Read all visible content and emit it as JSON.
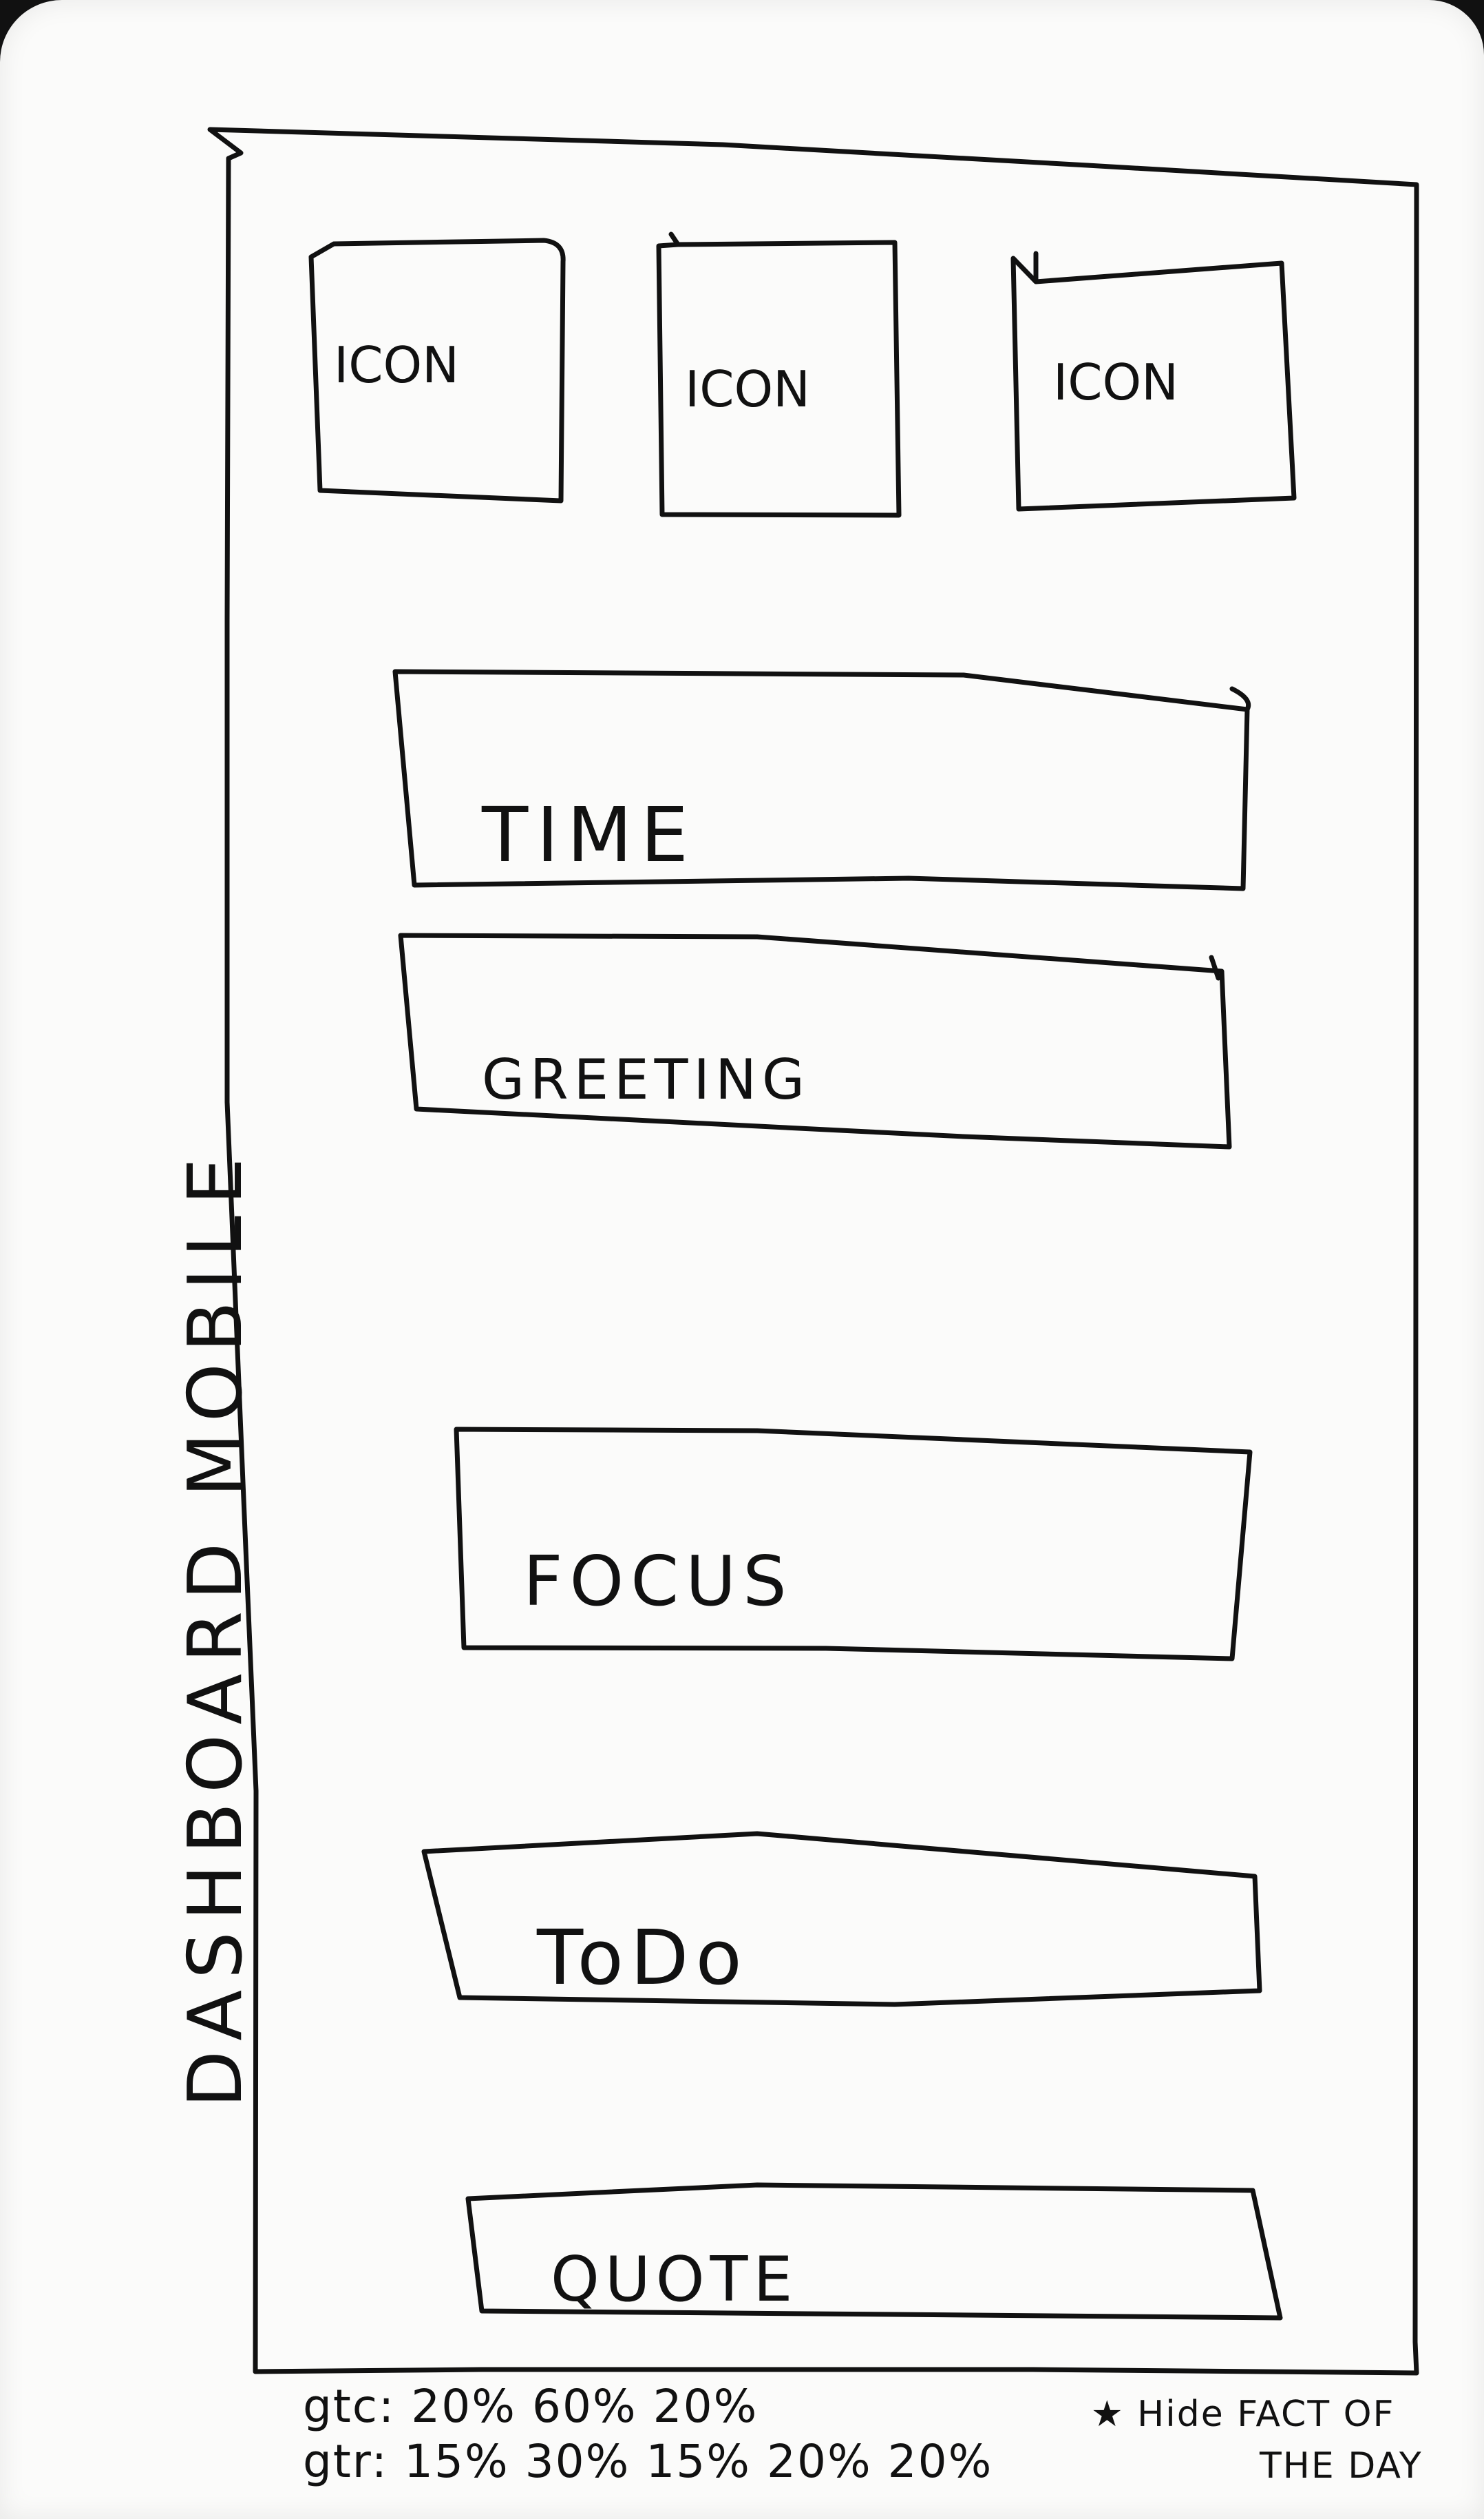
{
  "frame": {
    "vertical_label": "DASHBOARD MOBILE"
  },
  "icons": [
    {
      "label": "ICON"
    },
    {
      "label": "ICON"
    },
    {
      "label": "ICON"
    }
  ],
  "sections": [
    {
      "label": "TIME"
    },
    {
      "label": "GREETING"
    },
    {
      "label": "FOCUS"
    },
    {
      "label": "ToDo"
    },
    {
      "label": "QUOTE"
    }
  ],
  "notes": {
    "gtc": "gtc: 20% 60% 20%",
    "gtr": "gtr: 15% 30% 15% 20% 20%",
    "hide_line1": "★ Hide  FACT OF",
    "hide_line2": "THE DAY"
  },
  "colors": {
    "ink": "#111111",
    "paper": "#fbfbfa"
  }
}
